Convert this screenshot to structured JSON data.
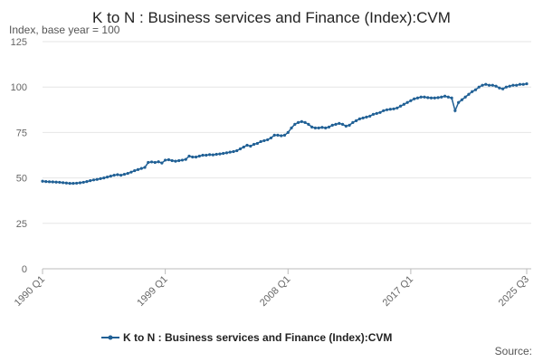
{
  "chart_data": {
    "type": "line",
    "title": "K to N : Business services and Finance (Index):CVM",
    "subtitle": "Index, base year = 100",
    "source": "Source:",
    "categories": [
      "1990 Q1",
      null,
      null,
      null,
      null,
      null,
      null,
      null,
      null,
      null,
      null,
      null,
      null,
      null,
      null,
      null,
      null,
      null,
      null,
      null,
      null,
      null,
      null,
      null,
      null,
      null,
      null,
      null,
      null,
      null,
      null,
      null,
      null,
      null,
      null,
      null,
      "1999 Q1",
      null,
      null,
      null,
      null,
      null,
      null,
      null,
      null,
      null,
      null,
      null,
      null,
      null,
      null,
      null,
      null,
      null,
      null,
      null,
      null,
      null,
      null,
      null,
      null,
      null,
      null,
      null,
      null,
      null,
      null,
      null,
      null,
      null,
      null,
      null,
      "2008 Q1",
      null,
      null,
      null,
      null,
      null,
      null,
      null,
      null,
      null,
      null,
      null,
      null,
      null,
      null,
      null,
      null,
      null,
      null,
      null,
      null,
      null,
      null,
      null,
      null,
      null,
      null,
      null,
      null,
      null,
      null,
      null,
      null,
      null,
      null,
      null,
      "2017 Q1",
      null,
      null,
      null,
      null,
      null,
      null,
      null,
      null,
      null,
      null,
      null,
      null,
      null,
      null,
      null,
      null,
      null,
      null,
      null,
      null,
      null,
      null,
      null,
      null,
      null,
      null,
      null,
      null,
      null,
      null,
      null,
      null,
      null,
      "2025 Q3"
    ],
    "series": [
      {
        "name": "K to N : Business services and Finance (Index):CVM",
        "color": "#206095",
        "values": [
          48.2,
          48.0,
          47.9,
          47.8,
          47.7,
          47.6,
          47.4,
          47.2,
          47.0,
          47.0,
          47.1,
          47.3,
          47.6,
          48.0,
          48.5,
          48.9,
          49.2,
          49.6,
          50.0,
          50.5,
          51.0,
          51.5,
          51.8,
          51.5,
          52.0,
          52.5,
          53.2,
          54.0,
          54.6,
          55.2,
          55.8,
          58.5,
          58.8,
          58.5,
          58.9,
          58.2,
          59.8,
          60.0,
          59.5,
          59.2,
          59.5,
          59.8,
          60.2,
          62.0,
          61.5,
          61.5,
          62.0,
          62.5,
          62.5,
          62.8,
          62.7,
          63.0,
          63.2,
          63.5,
          63.8,
          64.2,
          64.5,
          65.0,
          66.0,
          67.0,
          68.0,
          67.5,
          68.5,
          69.0,
          70.0,
          70.5,
          71.0,
          72.0,
          73.5,
          73.5,
          73.2,
          73.5,
          75.0,
          77.5,
          79.5,
          80.5,
          81.0,
          80.5,
          79.5,
          78.0,
          77.5,
          77.5,
          77.8,
          77.5,
          78.0,
          79.0,
          79.5,
          80.0,
          79.5,
          78.5,
          79.0,
          80.5,
          81.5,
          82.5,
          83.0,
          83.5,
          84.0,
          85.0,
          85.5,
          86.0,
          87.0,
          87.5,
          87.8,
          88.0,
          88.5,
          89.5,
          90.5,
          91.5,
          92.5,
          93.5,
          94.0,
          94.5,
          94.5,
          94.2,
          94.0,
          94.0,
          94.2,
          94.5,
          95.0,
          94.5,
          94.0,
          87.0,
          91.5,
          93.0,
          94.5,
          96.0,
          97.5,
          98.5,
          100.0,
          101.0,
          101.5,
          101.0,
          101.0,
          100.5,
          99.5,
          99.0,
          100.0,
          100.5,
          101.0,
          101.0,
          101.5,
          101.5,
          101.8
        ]
      }
    ],
    "ylim": [
      0,
      125
    ],
    "yticks": [
      0,
      25,
      50,
      75,
      100,
      125
    ],
    "grid": true,
    "legend": "bottom"
  }
}
